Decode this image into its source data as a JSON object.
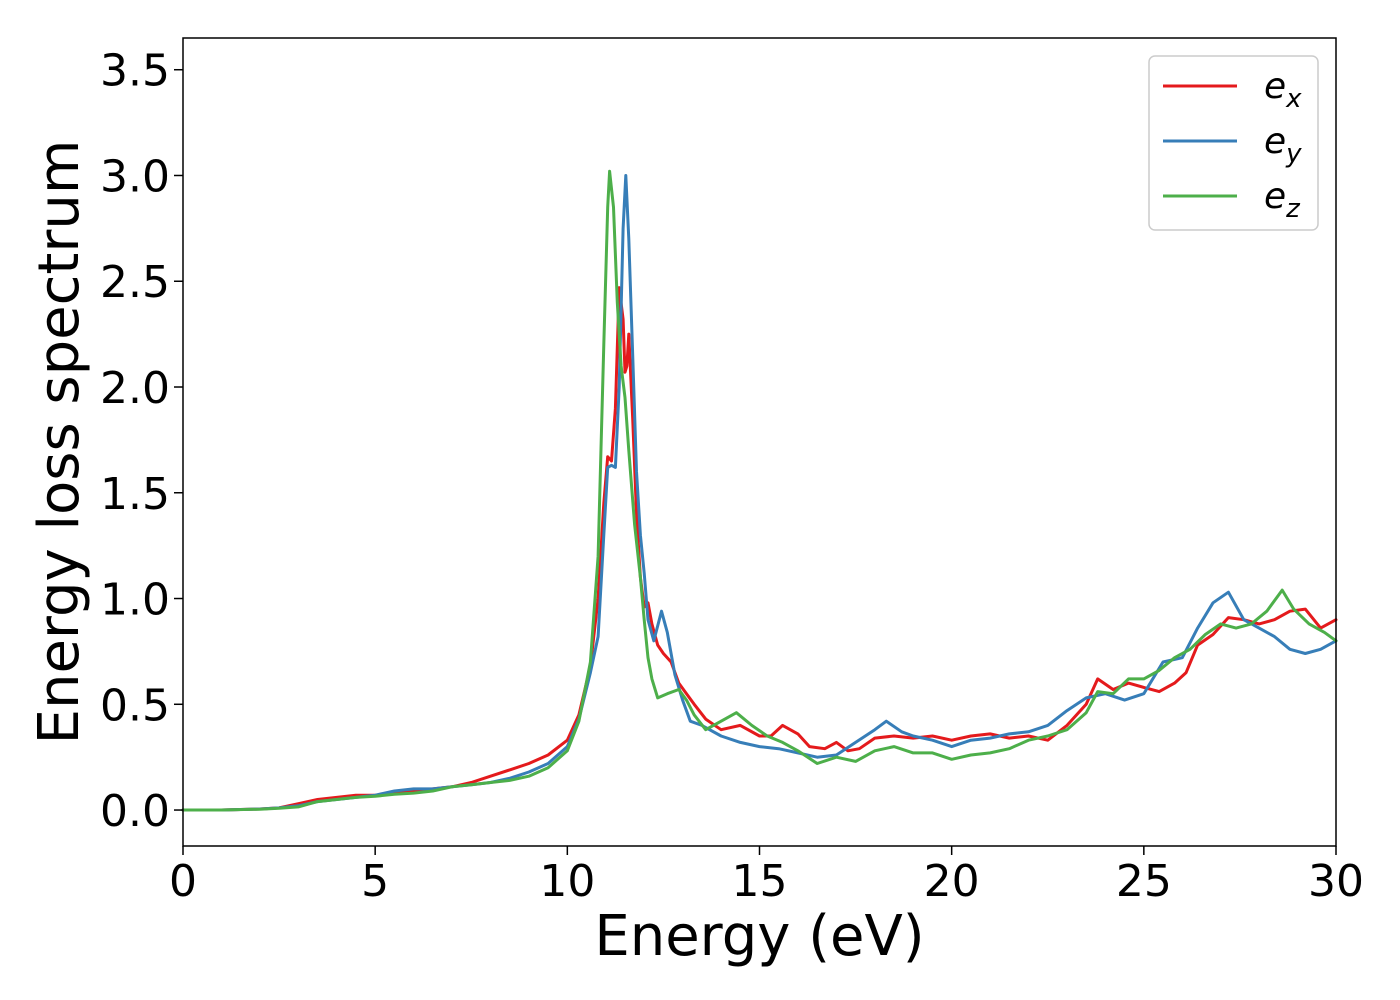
{
  "chart_data": {
    "type": "line",
    "title": "",
    "xlabel": "Energy (eV)",
    "ylabel": "Energy loss spectrum",
    "xlim": [
      0,
      30
    ],
    "ylim": [
      -0.17,
      3.65
    ],
    "xticks": [
      0,
      5,
      10,
      15,
      20,
      25,
      30
    ],
    "yticks": [
      0.0,
      0.5,
      1.0,
      1.5,
      2.0,
      2.5,
      3.0,
      3.5
    ],
    "xtick_labels": [
      "0",
      "5",
      "10",
      "15",
      "20",
      "25",
      "30"
    ],
    "ytick_labels": [
      "0.0",
      "0.5",
      "1.0",
      "1.5",
      "2.0",
      "2.5",
      "3.0",
      "3.5"
    ],
    "grid": false,
    "legend_position": "top-right",
    "series": [
      {
        "name": "e",
        "subscript": "x",
        "color": "#e41a1c",
        "points": [
          [
            0,
            0
          ],
          [
            1,
            0
          ],
          [
            2,
            0.005
          ],
          [
            2.5,
            0.01
          ],
          [
            3,
            0.03
          ],
          [
            3.5,
            0.05
          ],
          [
            4,
            0.06
          ],
          [
            4.5,
            0.07
          ],
          [
            5,
            0.07
          ],
          [
            5.5,
            0.08
          ],
          [
            6,
            0.09
          ],
          [
            6.5,
            0.1
          ],
          [
            7,
            0.11
          ],
          [
            7.5,
            0.13
          ],
          [
            8,
            0.16
          ],
          [
            8.5,
            0.19
          ],
          [
            9,
            0.22
          ],
          [
            9.5,
            0.26
          ],
          [
            10,
            0.33
          ],
          [
            10.3,
            0.45
          ],
          [
            10.6,
            0.68
          ],
          [
            10.8,
            1.0
          ],
          [
            10.95,
            1.45
          ],
          [
            11.05,
            1.67
          ],
          [
            11.15,
            1.65
          ],
          [
            11.25,
            1.9
          ],
          [
            11.35,
            2.47
          ],
          [
            11.45,
            2.32
          ],
          [
            11.5,
            2.07
          ],
          [
            11.55,
            2.1
          ],
          [
            11.6,
            2.25
          ],
          [
            11.7,
            1.85
          ],
          [
            11.8,
            1.4
          ],
          [
            11.9,
            1.1
          ],
          [
            12.0,
            0.96
          ],
          [
            12.1,
            0.98
          ],
          [
            12.2,
            0.88
          ],
          [
            12.35,
            0.78
          ],
          [
            12.5,
            0.74
          ],
          [
            12.7,
            0.7
          ],
          [
            12.9,
            0.6
          ],
          [
            13.1,
            0.55
          ],
          [
            13.3,
            0.5
          ],
          [
            13.6,
            0.43
          ],
          [
            14,
            0.38
          ],
          [
            14.5,
            0.4
          ],
          [
            15,
            0.35
          ],
          [
            15.3,
            0.35
          ],
          [
            15.6,
            0.4
          ],
          [
            16,
            0.36
          ],
          [
            16.3,
            0.3
          ],
          [
            16.7,
            0.29
          ],
          [
            17,
            0.32
          ],
          [
            17.3,
            0.28
          ],
          [
            17.6,
            0.29
          ],
          [
            18,
            0.34
          ],
          [
            18.5,
            0.35
          ],
          [
            19,
            0.34
          ],
          [
            19.5,
            0.35
          ],
          [
            20,
            0.33
          ],
          [
            20.5,
            0.35
          ],
          [
            21,
            0.36
          ],
          [
            21.5,
            0.34
          ],
          [
            22,
            0.35
          ],
          [
            22.5,
            0.33
          ],
          [
            23,
            0.4
          ],
          [
            23.5,
            0.5
          ],
          [
            23.8,
            0.62
          ],
          [
            24.2,
            0.57
          ],
          [
            24.6,
            0.6
          ],
          [
            25,
            0.58
          ],
          [
            25.4,
            0.56
          ],
          [
            25.8,
            0.6
          ],
          [
            26.1,
            0.65
          ],
          [
            26.4,
            0.78
          ],
          [
            26.8,
            0.83
          ],
          [
            27.2,
            0.91
          ],
          [
            27.6,
            0.9
          ],
          [
            28,
            0.88
          ],
          [
            28.4,
            0.9
          ],
          [
            28.8,
            0.94
          ],
          [
            29.2,
            0.95
          ],
          [
            29.6,
            0.86
          ],
          [
            30,
            0.9
          ]
        ]
      },
      {
        "name": "e",
        "subscript": "y",
        "color": "#377eb8",
        "points": [
          [
            0,
            0
          ],
          [
            1,
            0
          ],
          [
            2,
            0.005
          ],
          [
            2.5,
            0.01
          ],
          [
            3,
            0.02
          ],
          [
            3.5,
            0.04
          ],
          [
            4,
            0.05
          ],
          [
            4.5,
            0.06
          ],
          [
            5,
            0.07
          ],
          [
            5.5,
            0.09
          ],
          [
            6,
            0.1
          ],
          [
            6.5,
            0.1
          ],
          [
            7,
            0.11
          ],
          [
            7.5,
            0.12
          ],
          [
            8,
            0.13
          ],
          [
            8.5,
            0.15
          ],
          [
            9,
            0.18
          ],
          [
            9.5,
            0.22
          ],
          [
            10,
            0.3
          ],
          [
            10.3,
            0.43
          ],
          [
            10.6,
            0.65
          ],
          [
            10.8,
            0.82
          ],
          [
            10.95,
            1.3
          ],
          [
            11.05,
            1.62
          ],
          [
            11.15,
            1.63
          ],
          [
            11.25,
            1.62
          ],
          [
            11.35,
            2.0
          ],
          [
            11.45,
            2.75
          ],
          [
            11.52,
            3.0
          ],
          [
            11.6,
            2.7
          ],
          [
            11.7,
            2.15
          ],
          [
            11.8,
            1.6
          ],
          [
            11.9,
            1.3
          ],
          [
            12.0,
            1.12
          ],
          [
            12.1,
            0.9
          ],
          [
            12.25,
            0.8
          ],
          [
            12.45,
            0.94
          ],
          [
            12.6,
            0.84
          ],
          [
            12.8,
            0.64
          ],
          [
            13.0,
            0.52
          ],
          [
            13.2,
            0.42
          ],
          [
            13.5,
            0.4
          ],
          [
            14,
            0.35
          ],
          [
            14.5,
            0.32
          ],
          [
            15,
            0.3
          ],
          [
            15.5,
            0.29
          ],
          [
            16,
            0.27
          ],
          [
            16.5,
            0.25
          ],
          [
            17,
            0.26
          ],
          [
            17.5,
            0.32
          ],
          [
            18,
            0.38
          ],
          [
            18.3,
            0.42
          ],
          [
            18.7,
            0.37
          ],
          [
            19,
            0.35
          ],
          [
            19.5,
            0.33
          ],
          [
            20,
            0.3
          ],
          [
            20.5,
            0.33
          ],
          [
            21,
            0.34
          ],
          [
            21.5,
            0.36
          ],
          [
            22,
            0.37
          ],
          [
            22.5,
            0.4
          ],
          [
            23,
            0.47
          ],
          [
            23.5,
            0.53
          ],
          [
            24,
            0.55
          ],
          [
            24.5,
            0.52
          ],
          [
            25,
            0.55
          ],
          [
            25.5,
            0.7
          ],
          [
            26,
            0.72
          ],
          [
            26.4,
            0.86
          ],
          [
            26.8,
            0.98
          ],
          [
            27.2,
            1.03
          ],
          [
            27.6,
            0.9
          ],
          [
            28,
            0.86
          ],
          [
            28.4,
            0.82
          ],
          [
            28.8,
            0.76
          ],
          [
            29.2,
            0.74
          ],
          [
            29.6,
            0.76
          ],
          [
            30,
            0.8
          ]
        ]
      },
      {
        "name": "e",
        "subscript": "z",
        "color": "#4daf4a",
        "points": [
          [
            0,
            0
          ],
          [
            1,
            0
          ],
          [
            2,
            0.004
          ],
          [
            2.5,
            0.008
          ],
          [
            3,
            0.015
          ],
          [
            3.5,
            0.04
          ],
          [
            4,
            0.05
          ],
          [
            4.5,
            0.06
          ],
          [
            5,
            0.065
          ],
          [
            5.5,
            0.075
          ],
          [
            6,
            0.08
          ],
          [
            6.5,
            0.09
          ],
          [
            7,
            0.11
          ],
          [
            7.5,
            0.12
          ],
          [
            8,
            0.13
          ],
          [
            8.5,
            0.14
          ],
          [
            9,
            0.16
          ],
          [
            9.5,
            0.2
          ],
          [
            10,
            0.28
          ],
          [
            10.3,
            0.42
          ],
          [
            10.6,
            0.7
          ],
          [
            10.8,
            1.2
          ],
          [
            10.95,
            2.2
          ],
          [
            11.05,
            2.85
          ],
          [
            11.1,
            3.02
          ],
          [
            11.2,
            2.85
          ],
          [
            11.3,
            2.4
          ],
          [
            11.4,
            2.1
          ],
          [
            11.5,
            1.95
          ],
          [
            11.6,
            1.7
          ],
          [
            11.75,
            1.35
          ],
          [
            11.9,
            1.1
          ],
          [
            12.0,
            0.9
          ],
          [
            12.1,
            0.72
          ],
          [
            12.2,
            0.62
          ],
          [
            12.35,
            0.53
          ],
          [
            12.6,
            0.55
          ],
          [
            12.9,
            0.57
          ],
          [
            13.1,
            0.52
          ],
          [
            13.3,
            0.45
          ],
          [
            13.6,
            0.38
          ],
          [
            14,
            0.42
          ],
          [
            14.4,
            0.46
          ],
          [
            14.8,
            0.4
          ],
          [
            15.2,
            0.35
          ],
          [
            15.6,
            0.32
          ],
          [
            16,
            0.28
          ],
          [
            16.5,
            0.22
          ],
          [
            17,
            0.25
          ],
          [
            17.5,
            0.23
          ],
          [
            18,
            0.28
          ],
          [
            18.5,
            0.3
          ],
          [
            19,
            0.27
          ],
          [
            19.5,
            0.27
          ],
          [
            20,
            0.24
          ],
          [
            20.5,
            0.26
          ],
          [
            21,
            0.27
          ],
          [
            21.5,
            0.29
          ],
          [
            22,
            0.33
          ],
          [
            22.5,
            0.35
          ],
          [
            23,
            0.38
          ],
          [
            23.5,
            0.46
          ],
          [
            23.8,
            0.56
          ],
          [
            24.2,
            0.55
          ],
          [
            24.6,
            0.62
          ],
          [
            25,
            0.62
          ],
          [
            25.4,
            0.66
          ],
          [
            25.8,
            0.72
          ],
          [
            26.2,
            0.76
          ],
          [
            26.6,
            0.83
          ],
          [
            27,
            0.88
          ],
          [
            27.4,
            0.86
          ],
          [
            27.8,
            0.88
          ],
          [
            28.2,
            0.94
          ],
          [
            28.6,
            1.04
          ],
          [
            28.9,
            0.95
          ],
          [
            29.3,
            0.88
          ],
          [
            29.7,
            0.84
          ],
          [
            30,
            0.8
          ]
        ]
      }
    ]
  }
}
